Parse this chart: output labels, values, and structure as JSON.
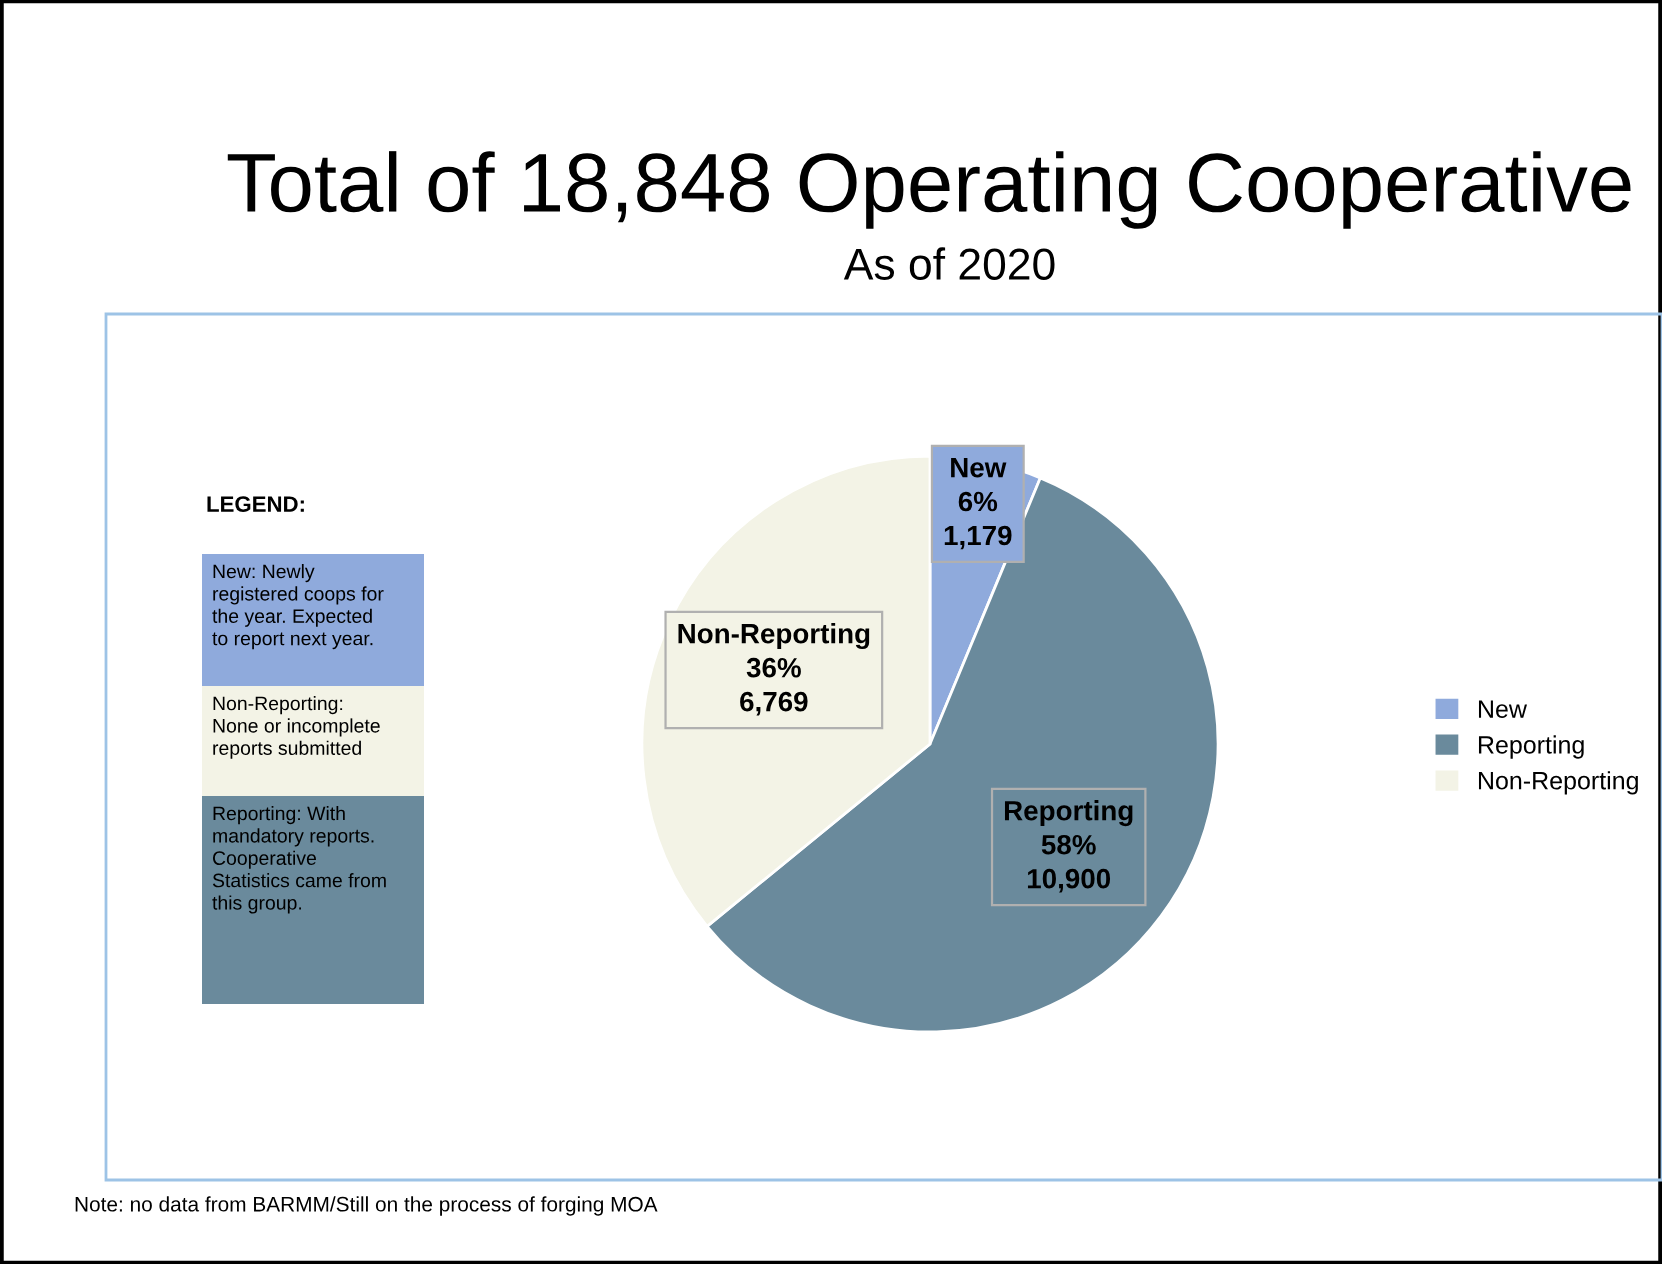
{
  "chart_data": {
    "type": "pie",
    "title": "Total of 18,848 Operating Cooperative",
    "subtitle": "As of 2020",
    "categories": [
      "New",
      "Reporting",
      "Non-Reporting"
    ],
    "values": [
      1179,
      10900,
      6769
    ],
    "value_labels": [
      "6%\n1,179",
      "58%\n10,900",
      "36%\n6,769"
    ],
    "colors": [
      "#8faadc",
      "#6a8a9c",
      "#f3f3e6"
    ],
    "legend": "right",
    "annotations": [
      "LEGEND:",
      "New: Newly\nregistered coops for\nthe year. Expected\nto report next year.",
      "Non-Reporting:\nNone or incomplete\nreports submitted",
      "Reporting: With\nmandatory reports.\nCooperative\nStatistics came from\nthis group.",
      "Note: no data from BARMM/Still on the process of forging MOA"
    ]
  }
}
